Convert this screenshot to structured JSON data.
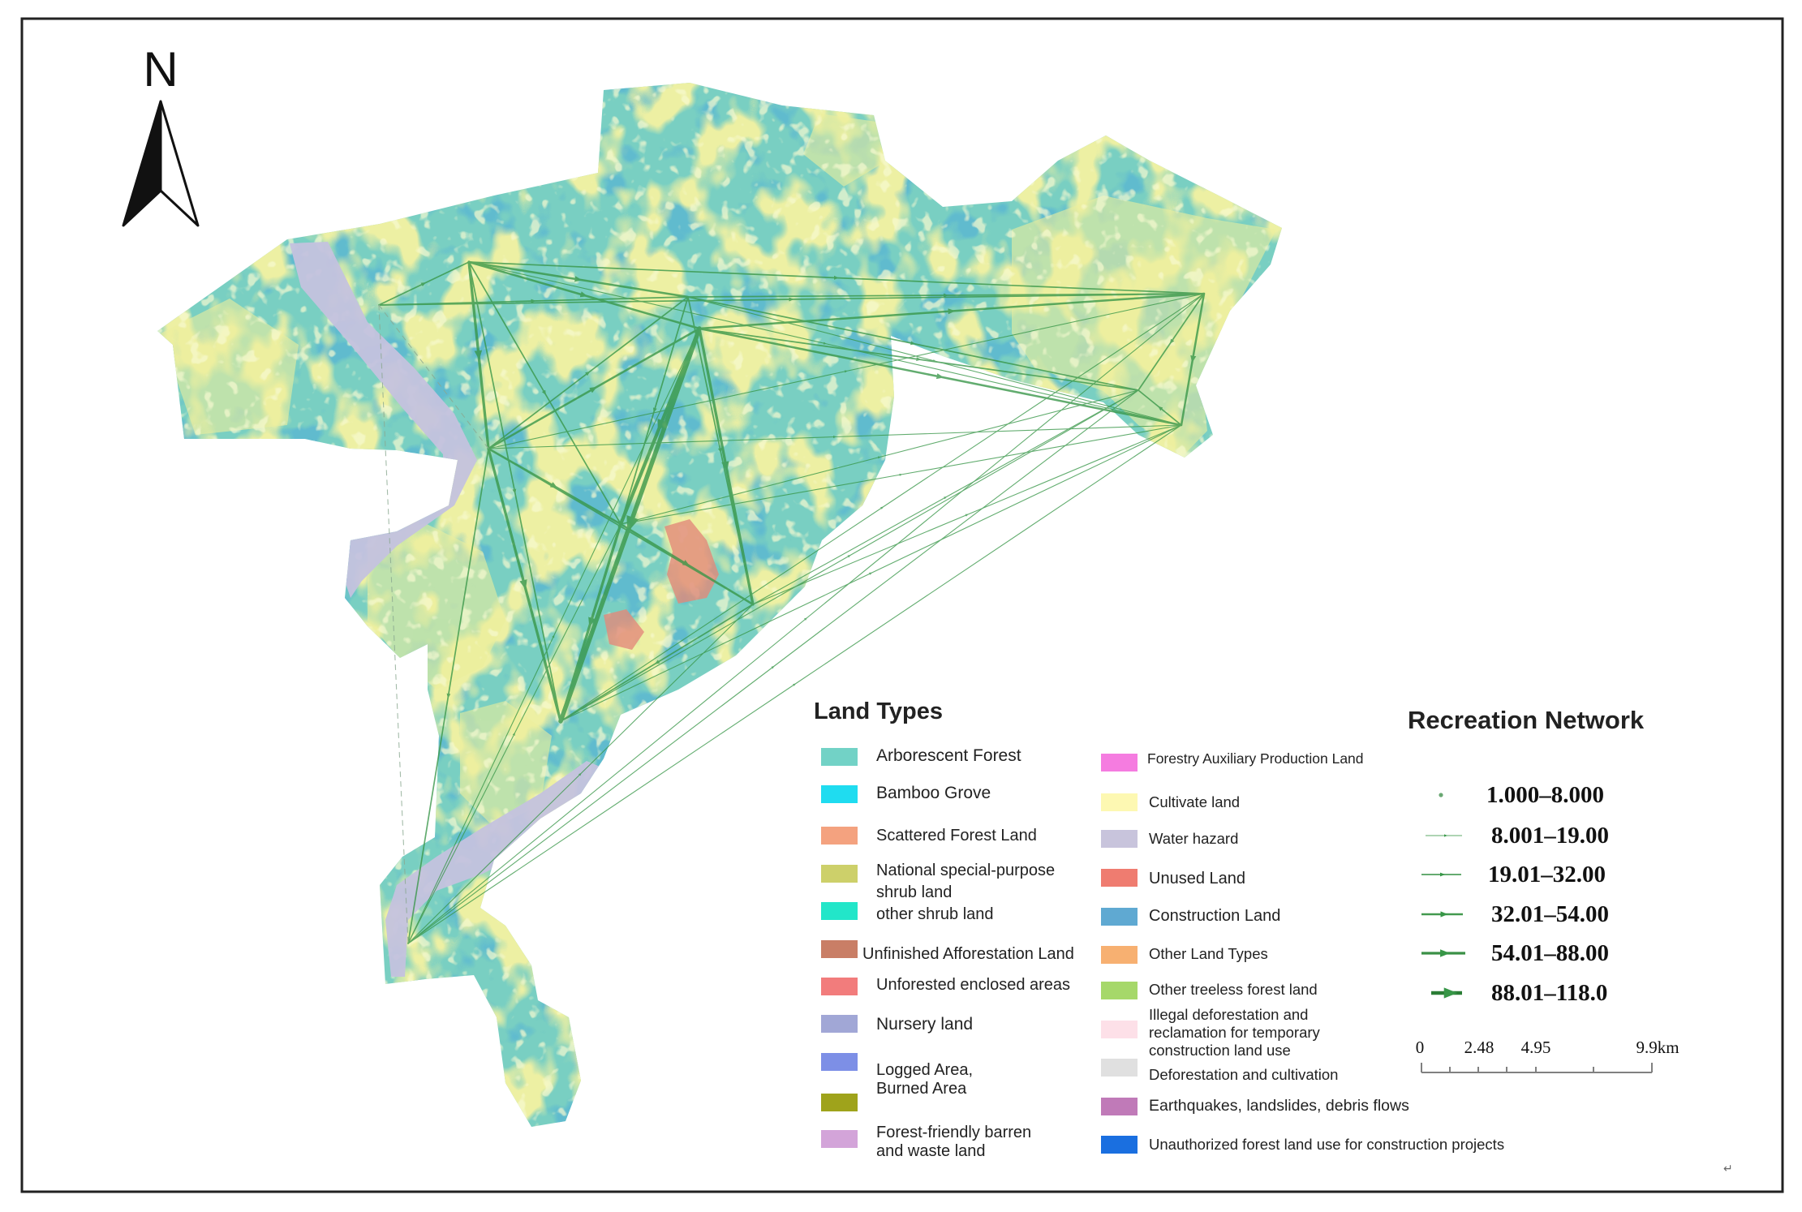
{
  "map": {
    "north_label": "N"
  },
  "land_types": {
    "title": "Land Types",
    "left": [
      {
        "lines": [
          "Arborescent Forest"
        ],
        "color": "#72d2c6"
      },
      {
        "lines": [
          "Bamboo Grove"
        ],
        "color": "#1fdcf0"
      },
      {
        "lines": [
          "Scattered Forest Land"
        ],
        "color": "#f4a27f"
      },
      {
        "lines": [
          "National special-purpose",
          "shrub land"
        ],
        "color": "#cdd06a"
      },
      {
        "lines": [
          "other shrub land"
        ],
        "color": "#22e6c9"
      },
      {
        "lines": [
          "Unfinished Afforestation Land"
        ],
        "color": "#c97e66"
      },
      {
        "lines": [
          "Unforested enclosed areas"
        ],
        "color": "#f27c7c"
      },
      {
        "lines": [
          "Nursery land"
        ],
        "color": "#a1a7d6"
      },
      {
        "lines": [
          "Logged Area,",
          "Burned Area"
        ],
        "color": "#7d8fe6"
      },
      {
        "lines": [],
        "color": "#9fa31b"
      },
      {
        "lines": [
          "Forest-friendly barren",
          "and waste land"
        ],
        "color": "#d3a4d9"
      }
    ],
    "right": [
      {
        "lines": [
          "Forestry Auxiliary Production Land"
        ],
        "color": "#f57ce0"
      },
      {
        "lines": [
          "Cultivate land"
        ],
        "color": "#fdf8b2"
      },
      {
        "lines": [
          "Water hazard"
        ],
        "color": "#c8c4dc"
      },
      {
        "lines": [
          "Unused Land"
        ],
        "color": "#ef7c70"
      },
      {
        "lines": [
          "Construction Land"
        ],
        "color": "#5fa9d2"
      },
      {
        "lines": [
          "Other Land Types"
        ],
        "color": "#f7b071"
      },
      {
        "lines": [
          "Other treeless forest land"
        ],
        "color": "#a6d86a"
      },
      {
        "lines": [
          "Illegal deforestation and",
          "reclamation for temporary",
          "construction land use"
        ],
        "color": "#fde0e8"
      },
      {
        "lines": [
          "Deforestation and cultivation"
        ],
        "color": "#e0e0e0"
      },
      {
        "lines": [
          "Earthquakes, landslides, debris flows"
        ],
        "color": "#c07ab8"
      },
      {
        "lines": [
          "Unauthorized forest land use for construction projects"
        ],
        "color": "#1a6fe0"
      }
    ]
  },
  "recreation_network": {
    "title": "Recreation Network",
    "classes": [
      "1.000–8.000",
      "8.001–19.00",
      "19.01–32.00",
      "32.01–54.00",
      "54.01–88.00",
      "88.01–118.0"
    ],
    "line_color": "#379647"
  },
  "scale_bar": {
    "labels": [
      "0",
      "2.48",
      "4.95",
      "9.9km"
    ]
  },
  "footer_mark": "↵"
}
